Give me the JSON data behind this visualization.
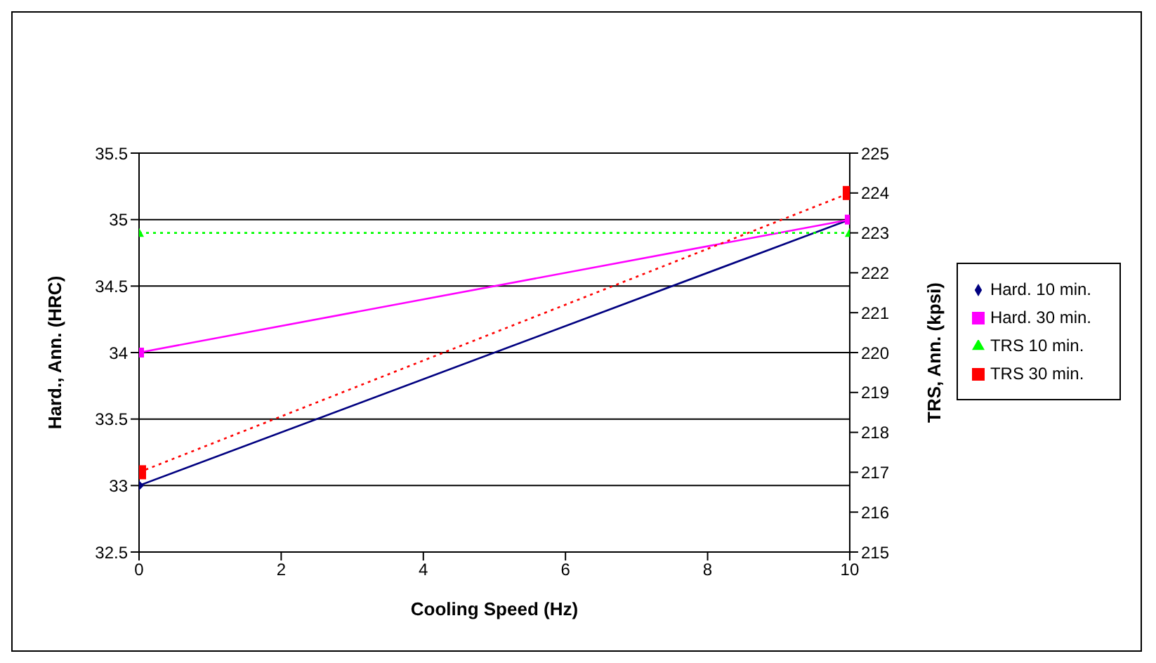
{
  "chart_data": {
    "type": "line",
    "xlabel": "Cooling Speed (Hz)",
    "ylabel": "Hard., Ann. (HRC)",
    "y2label": "TRS, Ann. (kpsi)",
    "x": [
      0,
      10
    ],
    "series": [
      {
        "name": "Hard. 10 min.",
        "color": "#000080",
        "values": [
          33,
          35
        ],
        "marker": "diamond",
        "line_style": "solid"
      },
      {
        "name": "Hard. 30 min.",
        "color": "#ff00ff",
        "values": [
          34,
          35
        ],
        "marker": "square",
        "line_style": "solid"
      },
      {
        "name": "TRS 10 min.",
        "color": "#00ff00",
        "values": [
          223,
          223
        ],
        "axis": "y2",
        "marker": "triangle",
        "line_style": "dotted"
      },
      {
        "name": "TRS 30 min.",
        "color": "#ff0000",
        "values": [
          217,
          224
        ],
        "axis": "y2",
        "marker": "square",
        "line_style": "dotted"
      }
    ],
    "xlim": [
      0,
      10
    ],
    "xticks": [
      0,
      2,
      4,
      6,
      8,
      10
    ],
    "ylim": [
      32.5,
      35.5
    ],
    "yticks": [
      32.5,
      33,
      33.5,
      34,
      34.5,
      35,
      35.5
    ],
    "y2lim": [
      215,
      225
    ],
    "y2ticks": [
      215,
      216,
      217,
      218,
      219,
      220,
      221,
      222,
      223,
      224,
      225
    ],
    "grid": "y",
    "legend": "right"
  }
}
